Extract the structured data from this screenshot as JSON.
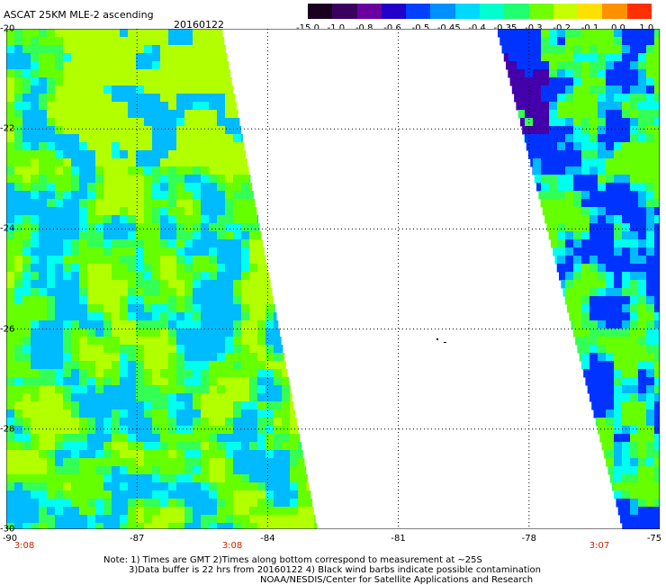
{
  "header": {
    "title": "ASCAT 25KM MLE-2 ascending",
    "date": "20160122"
  },
  "colorbar": {
    "labels": [
      "-15.0",
      "-1.0",
      "-0.8",
      "-0.6",
      "-0.5",
      "-0.45",
      "-0.4",
      "-0.35",
      "-0.3",
      "-0.2",
      "-0.1",
      "0.0",
      "1.0"
    ],
    "colors": [
      "#1a0020",
      "#3a0060",
      "#6a00a0",
      "#2000c8",
      "#0040ff",
      "#0090ff",
      "#00d8ff",
      "#00ffd0",
      "#20ff70",
      "#70ff00",
      "#c8ff00",
      "#ffe000",
      "#ff9000",
      "#ff3000"
    ]
  },
  "axes": {
    "y_ticks": [
      "-20",
      "-22",
      "-24",
      "-26",
      "-28",
      "-30"
    ],
    "x_ticks": [
      "-90",
      "-87",
      "-84",
      "-81",
      "-78",
      "-75"
    ],
    "lat_range": [
      -30,
      -20
    ],
    "lon_range": [
      -90,
      -75
    ]
  },
  "pass_times": [
    "3:08",
    "3:08",
    "3:07"
  ],
  "notes": [
    "Note: 1) Times are GMT 2)Times along bottom correspond to measurement at ~25S",
    "3)Data buffer is 22 hrs from 20160122 4) Black wind barbs indicate possible contamination",
    "NOAA/NESDIS/Center for Satellite Applications and Research"
  ],
  "palette": {
    "yellowgreen": "#b2ff00",
    "green": "#66ff00",
    "lime": "#33ff55",
    "cyan": "#00ffee",
    "skyblue": "#00bbff",
    "blue": "#0033ff",
    "violet": "#4400aa"
  }
}
